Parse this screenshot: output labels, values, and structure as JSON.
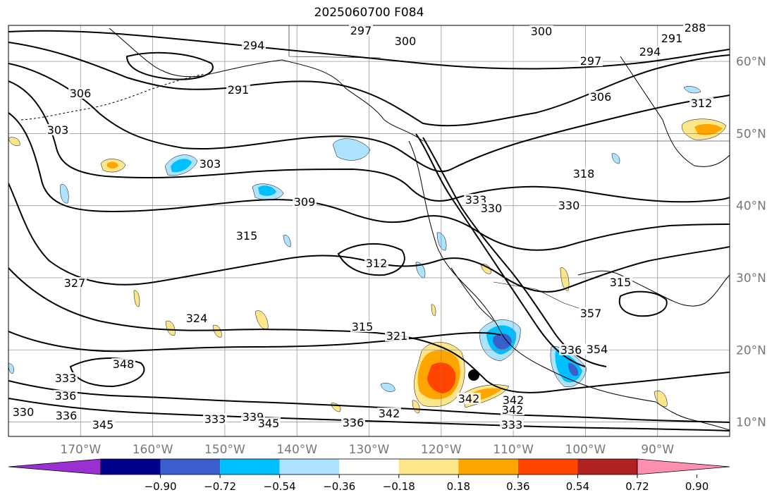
{
  "title": "2025060700 F084",
  "map": {
    "projection": "plate carree",
    "lon_range": [
      -180,
      -80
    ],
    "lat_range": [
      8,
      65
    ],
    "grid_lines": true,
    "coastlines": true,
    "country_borders": true,
    "state_borders": true,
    "marker": {
      "type": "filled-circle",
      "lon": -115,
      "lat": 16.5,
      "color": "#000000"
    }
  },
  "lat_labels": [
    "60°N",
    "50°N",
    "40°N",
    "30°N",
    "20°N",
    "10°N"
  ],
  "lat_values": [
    60,
    50,
    40,
    30,
    20,
    10
  ],
  "lon_labels": [
    "170°W",
    "160°W",
    "150°W",
    "140°W",
    "130°W",
    "120°W",
    "110°W",
    "100°W",
    "90°W"
  ],
  "lon_values": [
    -170,
    -160,
    -150,
    -140,
    -130,
    -120,
    -110,
    -100,
    -90
  ],
  "colorbar": {
    "orientation": "horizontal",
    "extend": "both",
    "ticks": [
      "−0.90",
      "−0.72",
      "−0.54",
      "−0.36",
      "−0.18",
      "0.18",
      "0.36",
      "0.54",
      "0.72",
      "0.90"
    ],
    "colors": [
      "#9b30d0",
      "#00008b",
      "#3a5fcd",
      "#00bfff",
      "#aee3ff",
      "#ffffff",
      "#fde68a",
      "#ffa500",
      "#ff4500",
      "#b22222",
      "#ff8fb0"
    ]
  },
  "contour_labels": [
    "297",
    "300",
    "300",
    "288",
    "291",
    "294",
    "294",
    "297",
    "291",
    "306",
    "306",
    "303",
    "303",
    "312",
    "318",
    "309",
    "315",
    "312",
    "333",
    "330",
    "330",
    "327",
    "324",
    "315",
    "321",
    "315",
    "336",
    "354",
    "357",
    "348",
    "333",
    "336",
    "330",
    "336",
    "333",
    "339",
    "345",
    "342",
    "342",
    "342",
    "336",
    "333",
    "345",
    "342"
  ],
  "filled_regions": [
    {
      "name": "orange-core-east-pacific",
      "lon": -119.5,
      "lat": 15.5,
      "level": 0.54
    },
    {
      "name": "red-core-east-pacific",
      "lon": -119,
      "lat": 15,
      "level": 0.72
    },
    {
      "name": "blue-core-mexico-coast",
      "lon": -111,
      "lat": 20.5,
      "level": -0.54
    },
    {
      "name": "blue-core-mexico-south",
      "lon": -99.5,
      "lat": 17.5,
      "level": -0.54
    },
    {
      "name": "orange-hudson",
      "lon": -84,
      "lat": 51,
      "level": 0.54
    }
  ]
}
